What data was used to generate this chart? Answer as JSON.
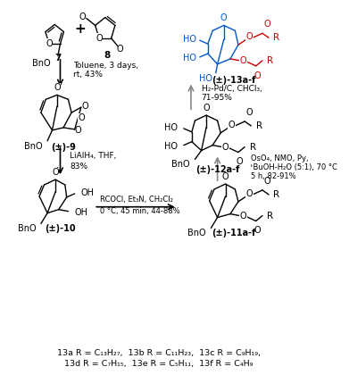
{
  "background": "#ffffff",
  "compounds": {
    "7_label": "7",
    "8_label": "8",
    "9_label": "(±)-9",
    "10_label": "(±)-10",
    "11_label": "(±)-11a-f",
    "12_label": "(±)-12a-f",
    "13_label": "(±)-13a-f"
  },
  "reagents": {
    "step1_l1": "Toluene, 3 days,",
    "step1_l2": "rt, 43%",
    "step2_l1": "LiAlH₄, THF,",
    "step2_l2": "83%",
    "step3_l1": "RCOCl, Et₃N, CH₂Cl₂",
    "step3_l2": "0 °C, 45 min, 44-88%",
    "step4_l1": "OsO₄, NMO, Py,",
    "step4_l2": "ᵗBuOH-H₂O (5:1), 70 °C",
    "step4_l3": "5 h, 82-91%",
    "step5_l1": "H₂-Pd/C, CHCl₃,",
    "step5_l2": "71-95%"
  },
  "footnote_line1": "13a R = C₁₃H₂₇,  13b R = C₁₁H₂₃,  13c R = C₉H₁₉,",
  "footnote_line2": "13d R = C₇H₁₅,  13e R = C₅H₁₁,  13f R = C₄H₉",
  "blue": "#0055cc",
  "red": "#cc0000",
  "black": "#000000",
  "gray": "#888888"
}
